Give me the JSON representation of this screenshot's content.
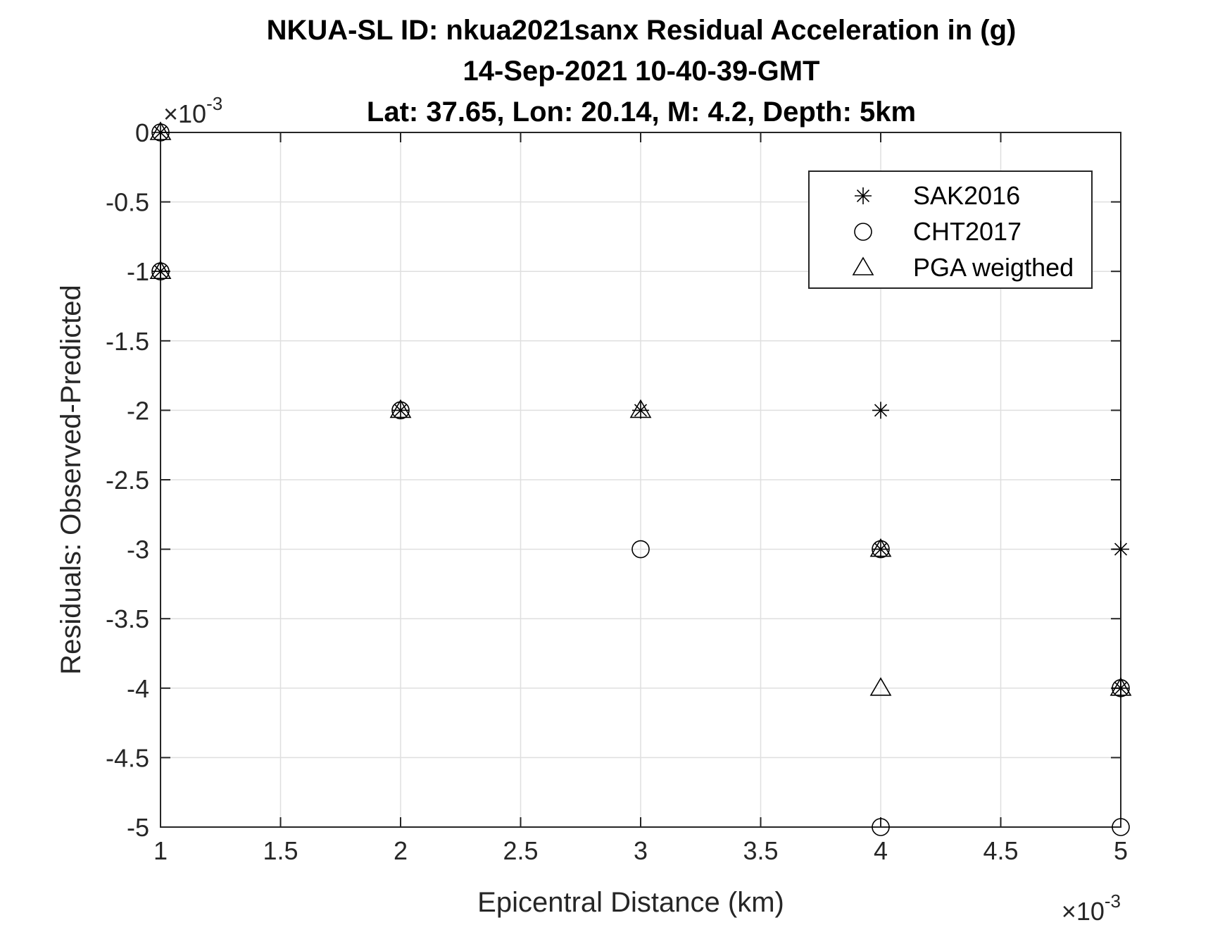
{
  "chart_data": {
    "type": "scatter",
    "title": [
      "NKUA-SL ID: nkua2021sanx Residual Acceleration in (g)",
      "14-Sep-2021 10-40-39-GMT",
      "Lat: 37.65, Lon: 20.14, M: 4.2, Depth: 5km"
    ],
    "xlabel": "Epicentral Distance (km)",
    "ylabel": "Residuals: Observed-Predicted",
    "x_exponent": "×10",
    "x_exponent_power": "-3",
    "y_exponent": "×10",
    "y_exponent_power": "-3",
    "xlim": [
      0.001,
      0.005
    ],
    "ylim": [
      -0.005,
      0
    ],
    "x_ticks": [
      0.001,
      0.0015,
      0.002,
      0.0025,
      0.003,
      0.0035,
      0.004,
      0.0045,
      0.005
    ],
    "x_tick_labels": [
      "1",
      "1.5",
      "2",
      "2.5",
      "3",
      "3.5",
      "4",
      "4.5",
      "5"
    ],
    "y_ticks": [
      0,
      -0.0005,
      -0.001,
      -0.0015,
      -0.002,
      -0.0025,
      -0.003,
      -0.0035,
      -0.004,
      -0.0045,
      -0.005
    ],
    "y_tick_labels": [
      "0",
      "-0.5",
      "-1",
      "-1.5",
      "-2",
      "-2.5",
      "-3",
      "-3.5",
      "-4",
      "-4.5",
      "-5"
    ],
    "grid": true,
    "legend_position": "top-right",
    "series": [
      {
        "name": "SAK2016",
        "marker": "asterisk",
        "points": [
          [
            0.001,
            0
          ],
          [
            0.001,
            -0.001
          ],
          [
            0.002,
            -0.002
          ],
          [
            0.003,
            -0.002
          ],
          [
            0.004,
            -0.002
          ],
          [
            0.004,
            -0.003
          ],
          [
            0.005,
            -0.003
          ],
          [
            0.005,
            -0.004
          ]
        ]
      },
      {
        "name": "CHT2017",
        "marker": "circle",
        "points": [
          [
            0.001,
            0
          ],
          [
            0.001,
            -0.001
          ],
          [
            0.002,
            -0.002
          ],
          [
            0.003,
            -0.003
          ],
          [
            0.004,
            -0.003
          ],
          [
            0.004,
            -0.005
          ],
          [
            0.005,
            -0.004
          ],
          [
            0.005,
            -0.005
          ]
        ]
      },
      {
        "name": "PGA weigthed",
        "marker": "triangle",
        "points": [
          [
            0.001,
            0
          ],
          [
            0.001,
            -0.001
          ],
          [
            0.002,
            -0.002
          ],
          [
            0.003,
            -0.002
          ],
          [
            0.004,
            -0.003
          ],
          [
            0.004,
            -0.004
          ],
          [
            0.005,
            -0.004
          ]
        ]
      }
    ]
  }
}
